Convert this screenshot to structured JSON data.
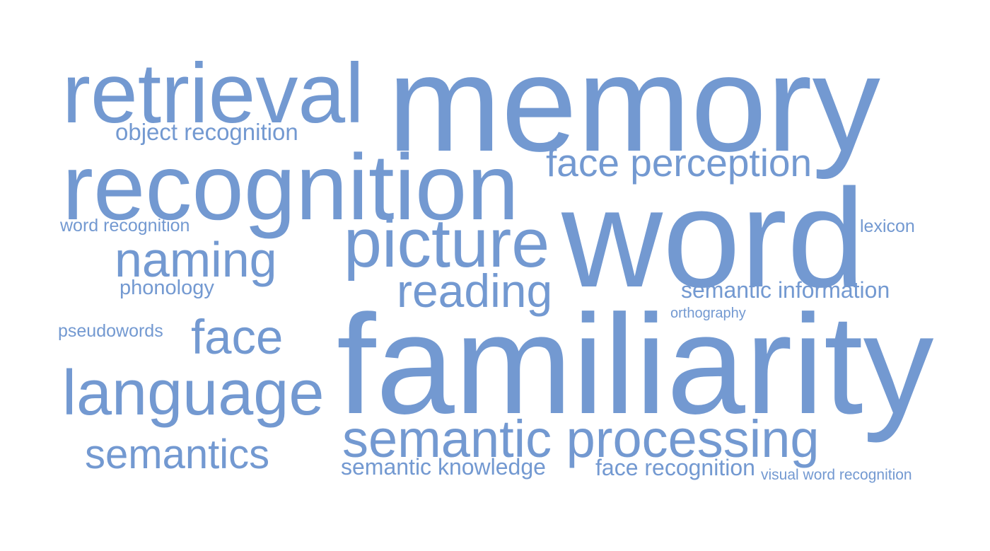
{
  "colors": {
    "word": "#7399d1",
    "background": "#ffffff"
  },
  "words": [
    "memory",
    "word",
    "familiarity",
    "recognition",
    "retrieval",
    "picture",
    "semantic processing",
    "language",
    "naming",
    "reading",
    "face perception",
    "face",
    "semantics",
    "object recognition",
    "semantic information",
    "semantic knowledge",
    "face recognition",
    "phonology",
    "word recognition",
    "lexicon",
    "pseudowords",
    "orthography",
    "visual word recognition"
  ]
}
